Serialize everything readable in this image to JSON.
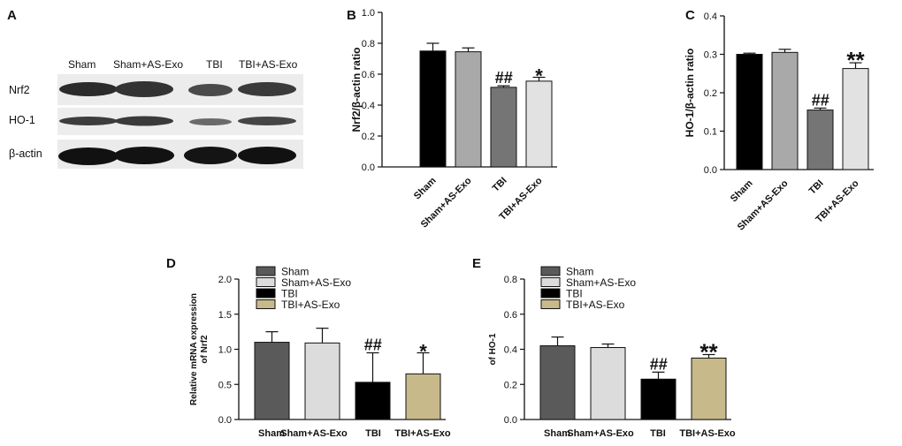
{
  "panel_a": {
    "letter": "A",
    "lanes": [
      "Sham",
      "Sham+AS-Exo",
      "TBI",
      "TBI+AS-Exo"
    ],
    "rows": [
      "Nrf2",
      "HO-1",
      "β-actin"
    ]
  },
  "chart_data": [
    {
      "panel": "B",
      "type": "bar",
      "ylabel": "Nrf2/β-actin ratio",
      "ylim": [
        0,
        1.0
      ],
      "yticks": [
        "0.0",
        "0.2",
        "0.4",
        "0.6",
        "0.8",
        "1.0"
      ],
      "categories": [
        "Sham",
        "Sham+AS-Exo",
        "TBI",
        "TBI+AS-Exo"
      ],
      "values": [
        0.75,
        0.745,
        0.515,
        0.555
      ],
      "errors": [
        0.05,
        0.025,
        0.01,
        0.025
      ],
      "colors": [
        "#000000",
        "#a9a9a9",
        "#757575",
        "#e2e2e2"
      ],
      "annotations": [
        "",
        "",
        "##",
        "*"
      ],
      "legend": "none"
    },
    {
      "panel": "C",
      "type": "bar",
      "ylabel": "HO-1/β-actin ratio",
      "ylim": [
        0,
        0.4
      ],
      "yticks": [
        "0.0",
        "0.1",
        "0.2",
        "0.3",
        "0.4"
      ],
      "categories": [
        "Sham",
        "Sham+AS-Exo",
        "TBI",
        "TBI+AS-Exo"
      ],
      "values": [
        0.3,
        0.305,
        0.155,
        0.263
      ],
      "errors": [
        0.003,
        0.008,
        0.005,
        0.015
      ],
      "colors": [
        "#000000",
        "#a9a9a9",
        "#757575",
        "#e2e2e2"
      ],
      "annotations": [
        "",
        "",
        "##",
        "**"
      ],
      "legend": "none"
    },
    {
      "panel": "D",
      "type": "bar",
      "ylabel": "Relative mRNA expression\nof Nrf2",
      "ylim": [
        0,
        2.0
      ],
      "yticks": [
        "0.0",
        "0.5",
        "1.0",
        "1.5",
        "2.0"
      ],
      "categories": [
        "Sham",
        "Sham+AS-Exo",
        "TBI",
        "TBI+AS-Exo"
      ],
      "values": [
        1.1,
        1.09,
        0.53,
        0.65
      ],
      "errors": [
        0.15,
        0.21,
        0.42,
        0.3
      ],
      "colors": [
        "#5a5a5a",
        "#dcdcdc",
        "#000000",
        "#c7b98a"
      ],
      "annotations": [
        "",
        "",
        "##",
        "*"
      ],
      "legend": "top",
      "legend_labels": [
        "Sham",
        "Sham+AS-Exo",
        "TBI",
        "TBI+AS-Exo"
      ]
    },
    {
      "panel": "E",
      "type": "bar",
      "ylabel": "of HO-1",
      "ylim": [
        0,
        0.8
      ],
      "yticks": [
        "0.0",
        "0.2",
        "0.4",
        "0.6",
        "0.8"
      ],
      "categories": [
        "Sham",
        "Sham+AS-Exo",
        "TBI",
        "TBI+AS-Exo"
      ],
      "values": [
        0.42,
        0.41,
        0.23,
        0.35
      ],
      "errors": [
        0.05,
        0.02,
        0.04,
        0.02
      ],
      "colors": [
        "#5a5a5a",
        "#dcdcdc",
        "#000000",
        "#c7b98a"
      ],
      "annotations": [
        "",
        "",
        "##",
        "**"
      ],
      "legend": "top",
      "legend_labels": [
        "Sham",
        "Sham+AS-Exo",
        "TBI",
        "TBI+AS-Exo"
      ]
    }
  ]
}
